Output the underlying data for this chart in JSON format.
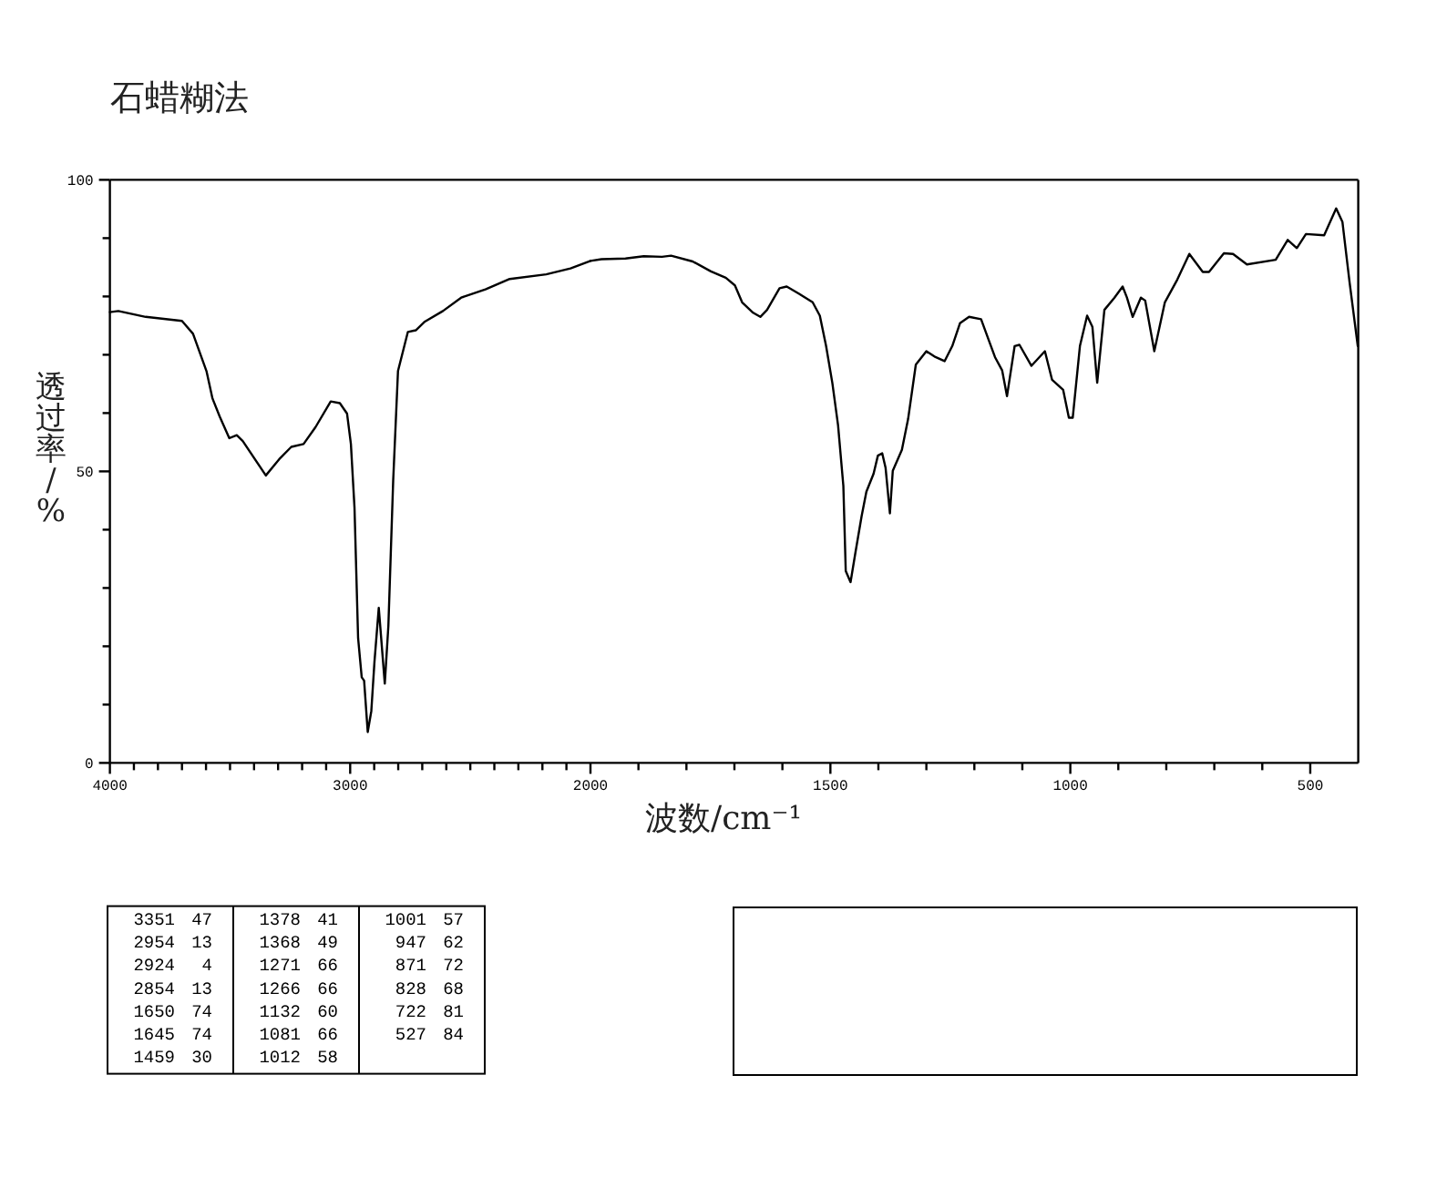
{
  "chart_data": [
    {
      "type": "line",
      "title": "石蜡糊法",
      "ylabel": "透过率/%",
      "color": "#000000",
      "x": [
        4000,
        3965,
        3851,
        3700,
        3654,
        3598,
        3573,
        3543,
        3503,
        3472,
        3447,
        3351,
        3295,
        3245,
        3194,
        3144,
        3081,
        3043,
        3013,
        2997,
        2982,
        2967,
        2952,
        2942,
        2927,
        2912,
        2899,
        2881,
        2871,
        2856,
        2841,
        2821,
        2801,
        2760,
        2727,
        2689,
        2614,
        2538,
        2437,
        2336,
        2184,
        2083,
        2000
      ],
      "values": [
        77.3,
        77.5,
        76.5,
        75.8,
        73.6,
        67.2,
        62.5,
        59.4,
        55.7,
        56.2,
        55.2,
        49.3,
        52.1,
        54.2,
        54.7,
        57.6,
        62.0,
        61.7,
        59.9,
        54.7,
        43.8,
        21.4,
        14.7,
        14.1,
        5.3,
        8.9,
        17.3,
        26.6,
        21.4,
        13.6,
        23.5,
        48.4,
        67.2,
        73.9,
        74.2,
        75.7,
        77.5,
        79.8,
        81.2,
        83.0,
        83.8,
        84.8,
        86.1
      ],
      "xlim": [
        4000,
        2000
      ],
      "ylim": [
        0,
        100
      ],
      "xticks": [
        4000,
        {
          "value": 3900,
          "label": null
        },
        {
          "value": 3800,
          "label": null
        },
        {
          "value": 3700,
          "label": null
        },
        {
          "value": 3600,
          "label": null
        },
        {
          "value": 3500,
          "label": null
        },
        {
          "value": 3400,
          "label": null
        },
        {
          "value": 3300,
          "label": null
        },
        {
          "value": 3200,
          "label": null
        },
        {
          "value": 3100,
          "label": null
        },
        3000,
        {
          "value": 2900,
          "label": null
        },
        {
          "value": 2800,
          "label": null
        },
        {
          "value": 2700,
          "label": null
        },
        {
          "value": 2600,
          "label": null
        },
        {
          "value": 2500,
          "label": null
        },
        {
          "value": 2400,
          "label": null
        },
        {
          "value": 2300,
          "label": null
        },
        {
          "value": 2200,
          "label": null
        },
        {
          "value": 2100,
          "label": null
        },
        2000
      ],
      "yticks": [
        0,
        {
          "value": 10,
          "label": null
        },
        {
          "value": 20,
          "label": null
        },
        {
          "value": 30,
          "label": null
        },
        {
          "value": 40,
          "label": null
        },
        50,
        {
          "value": 60,
          "label": null
        },
        {
          "value": 70,
          "label": null
        },
        {
          "value": 80,
          "label": null
        },
        {
          "value": 90,
          "label": null
        },
        100
      ],
      "annotations": [
        "3351 47",
        "2954 13",
        "2924 4",
        "2854 13",
        "1650 74",
        "1645 74",
        "1459 30",
        "1378 41",
        "1368 49",
        "1271 66",
        "1266 66",
        "1132 60",
        "1081 66",
        "1012 58",
        "1001 57",
        "947 62",
        "871 72",
        "828 68",
        "722 81",
        "527 84"
      ]
    },
    {
      "type": "line",
      "xlabel": "波数/cm⁻¹",
      "color": "#000000",
      "x": [
        2000,
        1977,
        1927,
        1889,
        1851,
        1832,
        1787,
        1749,
        1718,
        1699,
        1684,
        1661,
        1646,
        1632,
        1606,
        1591,
        1566,
        1537,
        1522,
        1509,
        1496,
        1484,
        1473,
        1468,
        1458,
        1448,
        1435,
        1425,
        1410,
        1401,
        1392,
        1385,
        1376,
        1370,
        1351,
        1338,
        1322,
        1300,
        1281,
        1262,
        1246,
        1230,
        1211,
        1186,
        1170,
        1157,
        1142,
        1132,
        1116,
        1106,
        1081,
        1053,
        1038,
        1015,
        1003,
        995,
        980,
        965,
        954,
        944,
        929,
        908,
        891,
        882,
        870,
        853,
        844,
        825,
        803,
        777,
        752,
        724,
        711,
        680,
        661,
        632,
        572,
        547,
        528,
        509,
        471,
        446,
        433,
        418,
        401
      ],
      "values": [
        86.1,
        86.4,
        86.5,
        86.9,
        86.8,
        87.0,
        86.0,
        84.3,
        83.2,
        81.9,
        79.0,
        77.2,
        76.5,
        77.7,
        81.4,
        81.7,
        80.5,
        79.0,
        76.7,
        71.5,
        65.2,
        57.9,
        47.5,
        32.9,
        31.0,
        36.0,
        42.3,
        46.5,
        49.6,
        52.7,
        53.1,
        50.6,
        42.8,
        50.1,
        53.7,
        59.0,
        68.3,
        70.6,
        69.6,
        68.9,
        71.5,
        75.4,
        76.5,
        76.1,
        72.5,
        69.6,
        67.3,
        62.9,
        71.5,
        71.7,
        68.1,
        70.6,
        65.7,
        64.0,
        59.2,
        59.2,
        71.5,
        76.7,
        74.8,
        65.2,
        77.7,
        79.8,
        81.7,
        79.8,
        76.5,
        79.8,
        79.3,
        70.6,
        79.0,
        82.9,
        87.3,
        84.2,
        84.2,
        87.4,
        87.3,
        85.5,
        86.3,
        89.7,
        88.3,
        90.7,
        90.5,
        95.1,
        92.8,
        82.4,
        71.5
      ],
      "xlim": [
        2000,
        400
      ],
      "ylim": [
        0,
        100
      ],
      "xticks": [
        {
          "value": 1900,
          "label": null
        },
        {
          "value": 1800,
          "label": null
        },
        {
          "value": 1700,
          "label": null
        },
        {
          "value": 1600,
          "label": null
        },
        1500,
        {
          "value": 1400,
          "label": null
        },
        {
          "value": 1300,
          "label": null
        },
        {
          "value": 1200,
          "label": null
        },
        {
          "value": 1100,
          "label": null
        },
        1000,
        {
          "value": 900,
          "label": null
        },
        {
          "value": 800,
          "label": null
        },
        {
          "value": 700,
          "label": null
        },
        {
          "value": 600,
          "label": null
        },
        500
      ],
      "tick_labels": "x"
    }
  ]
}
